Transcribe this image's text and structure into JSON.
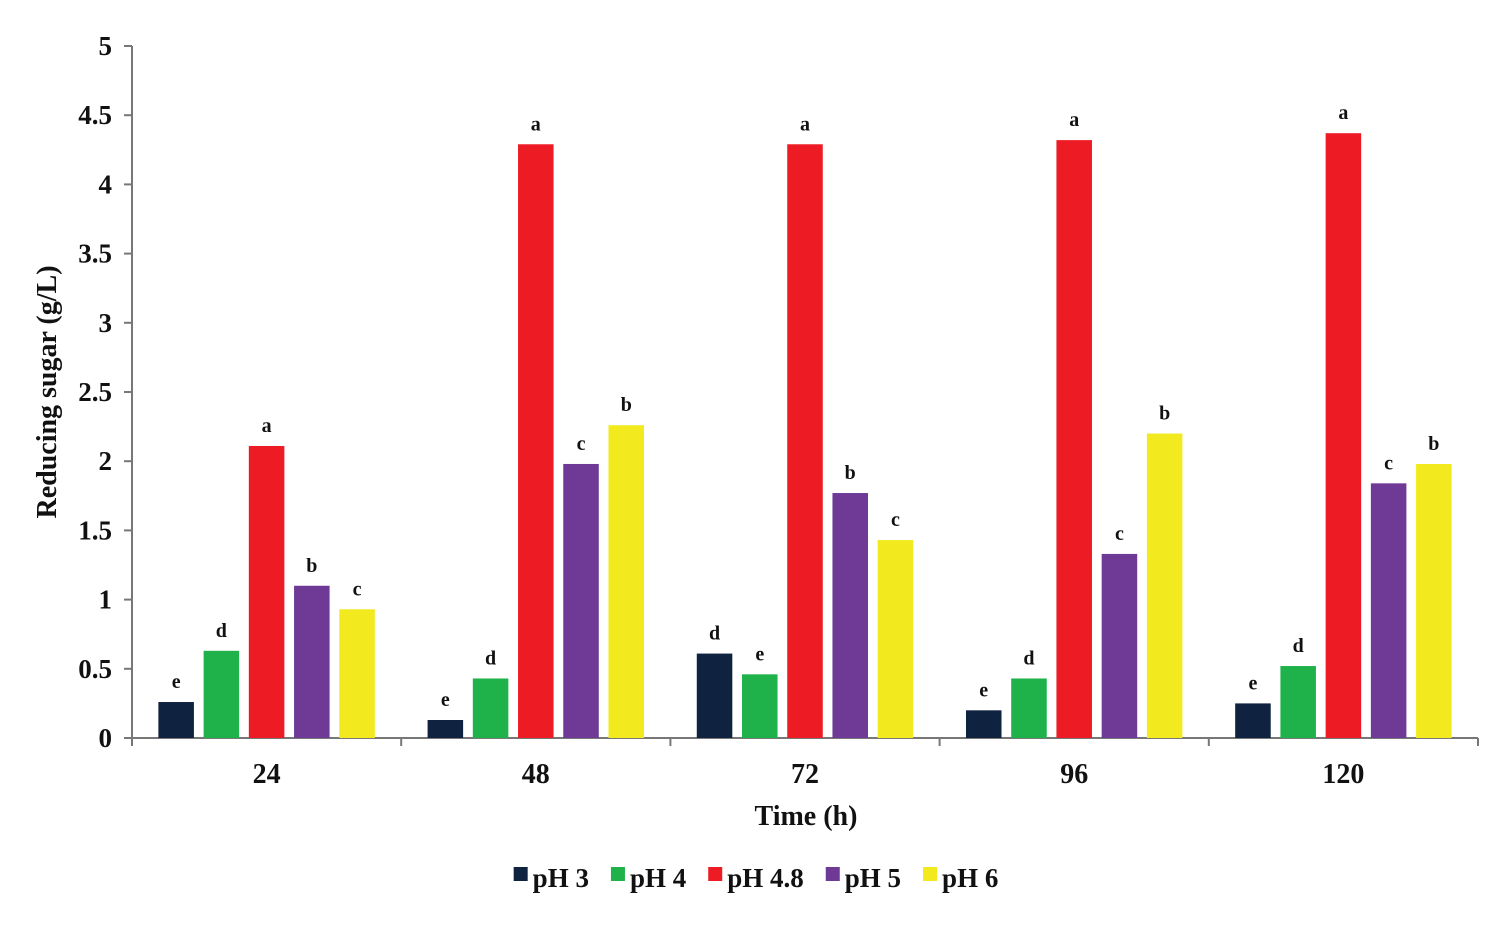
{
  "chart_data": {
    "type": "bar",
    "title": "",
    "xlabel": "Time  (h)",
    "ylabel": "Reducing sugar  (g/L)",
    "ylim": [
      0,
      5
    ],
    "yticks": [
      "0",
      "0.5",
      "1",
      "1.5",
      "2",
      "2.5",
      "3",
      "3.5",
      "4",
      "4.5",
      "5"
    ],
    "grid": false,
    "legend_position": "bottom",
    "categories": [
      "24",
      "48",
      "72",
      "96",
      "120"
    ],
    "series": [
      {
        "name": "pH 3",
        "color": "#0f2240",
        "values": [
          0.26,
          0.13,
          0.61,
          0.2,
          0.25
        ],
        "letters": [
          "e",
          "e",
          "d",
          "e",
          "e"
        ]
      },
      {
        "name": "pH 4",
        "color": "#1fb24a",
        "values": [
          0.63,
          0.43,
          0.46,
          0.43,
          0.52
        ],
        "letters": [
          "d",
          "d",
          "e",
          "d",
          "d"
        ]
      },
      {
        "name": "pH 4.8",
        "color": "#ed1c24",
        "values": [
          2.11,
          4.29,
          4.29,
          4.32,
          4.37
        ],
        "letters": [
          "a",
          "a",
          "a",
          "a",
          "a"
        ]
      },
      {
        "name": "pH 5",
        "color": "#6f3996",
        "values": [
          1.1,
          1.98,
          1.77,
          1.33,
          1.84
        ],
        "letters": [
          "b",
          "c",
          "b",
          "c",
          "c"
        ]
      },
      {
        "name": "pH 6",
        "color": "#f2e91f",
        "values": [
          0.93,
          2.26,
          1.43,
          2.2,
          1.98
        ],
        "letters": [
          "c",
          "b",
          "c",
          "b",
          "b"
        ]
      }
    ]
  }
}
